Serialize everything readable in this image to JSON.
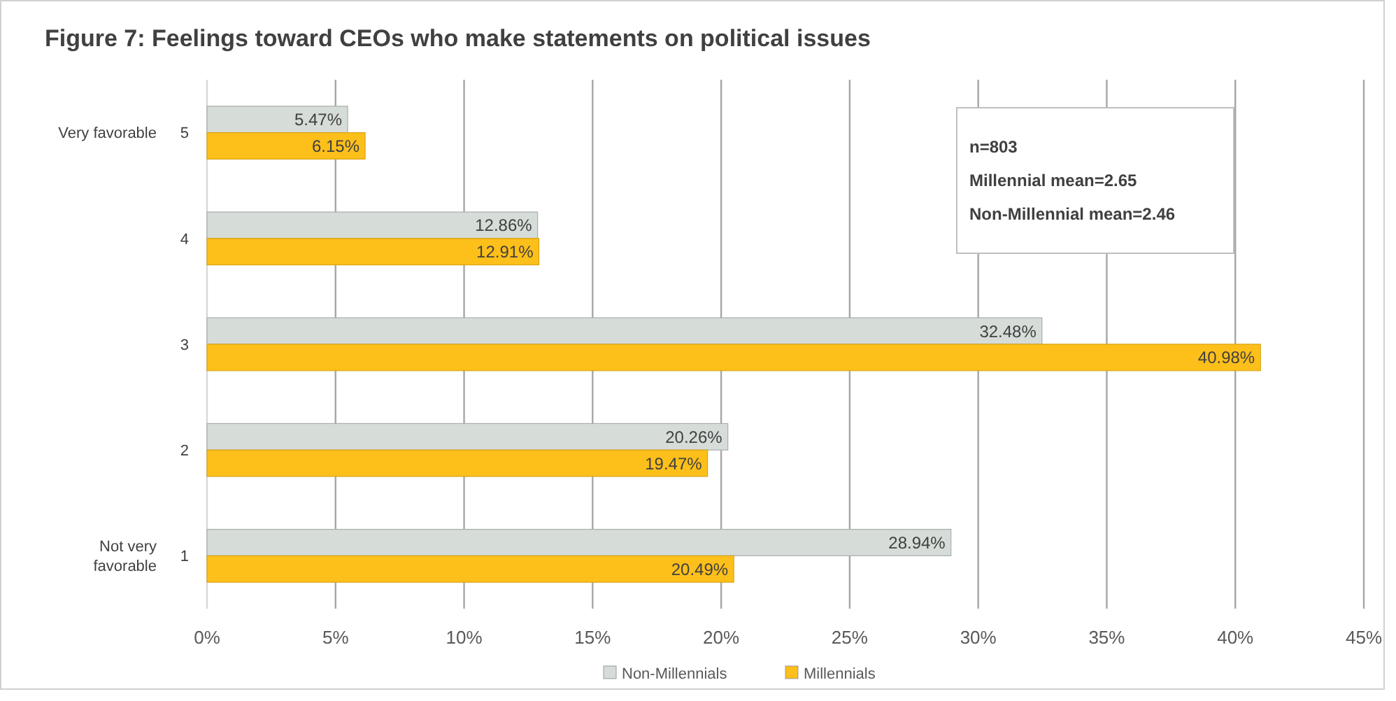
{
  "chart_data": {
    "type": "bar",
    "orientation": "horizontal",
    "title": "Figure 7: Feelings toward CEOs who make statements on political issues",
    "categories": [
      "5",
      "4",
      "3",
      "2",
      "1"
    ],
    "series": [
      {
        "name": "Non-Millennials",
        "color": "#d6dcd8",
        "values": [
          5.47,
          12.86,
          32.48,
          20.26,
          28.94
        ],
        "value_labels": [
          "5.47%",
          "12.86%",
          "32.48%",
          "20.26%",
          "28.94%"
        ]
      },
      {
        "name": "Millennials",
        "color": "#fdbf1a",
        "values": [
          6.15,
          12.91,
          40.98,
          19.47,
          20.49
        ],
        "value_labels": [
          "6.15%",
          "12.91%",
          "40.98%",
          "19.47%",
          "20.49%"
        ]
      }
    ],
    "xlim": [
      0,
      45
    ],
    "xticks": [
      {
        "value": 0,
        "label": "0%"
      },
      {
        "value": 5,
        "label": "5%"
      },
      {
        "value": 10,
        "label": "10%"
      },
      {
        "value": 15,
        "label": "15%"
      },
      {
        "value": 20,
        "label": "20%"
      },
      {
        "value": 25,
        "label": "25%"
      },
      {
        "value": 30,
        "label": "30%"
      },
      {
        "value": 35,
        "label": "35%"
      },
      {
        "value": 40,
        "label": "40%"
      },
      {
        "value": 45,
        "label": "45%"
      }
    ],
    "grid": "x",
    "legend": "bottom",
    "annotations": [
      "Very favorable",
      "Not very favorable",
      "n=803",
      "Millennial mean=2.65",
      "Non-Millennial mean=2.46"
    ]
  }
}
